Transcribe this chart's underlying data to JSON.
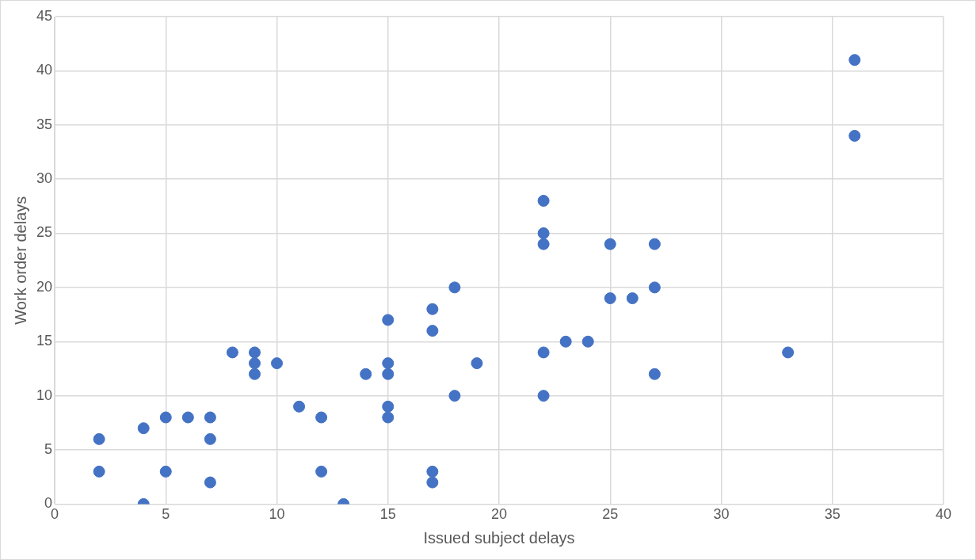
{
  "chart_data": {
    "type": "scatter",
    "xlabel": "Issued subject delays",
    "ylabel": "Work order delays",
    "x": [
      2,
      2,
      4,
      4,
      5,
      5,
      6,
      7,
      7,
      7,
      8,
      9,
      9,
      9,
      10,
      11,
      12,
      12,
      13,
      14,
      15,
      15,
      15,
      15,
      15,
      17,
      17,
      17,
      17,
      18,
      18,
      19,
      22,
      22,
      22,
      22,
      22,
      23,
      24,
      25,
      25,
      26,
      27,
      27,
      27,
      33,
      36,
      36
    ],
    "series": [
      {
        "color": "#4472c4",
        "values": [
          6,
          3,
          7,
          0,
          8,
          3,
          8,
          8,
          6,
          2,
          14,
          14,
          13,
          12,
          13,
          9,
          8,
          3,
          0,
          12,
          17,
          13,
          12,
          9,
          8,
          18,
          16,
          3,
          2,
          20,
          10,
          13,
          28,
          25,
          24,
          14,
          10,
          15,
          15,
          24,
          19,
          19,
          24,
          20,
          12,
          14,
          41,
          34
        ]
      }
    ],
    "xlim": [
      0,
      40
    ],
    "xticks": [
      0,
      5,
      10,
      15,
      20,
      25,
      30,
      35,
      40
    ],
    "ylim": [
      0,
      45
    ],
    "yticks": [
      0,
      5,
      10,
      15,
      20,
      25,
      30,
      35,
      40,
      45
    ],
    "grid": true,
    "legend": false,
    "marker": "circle"
  }
}
